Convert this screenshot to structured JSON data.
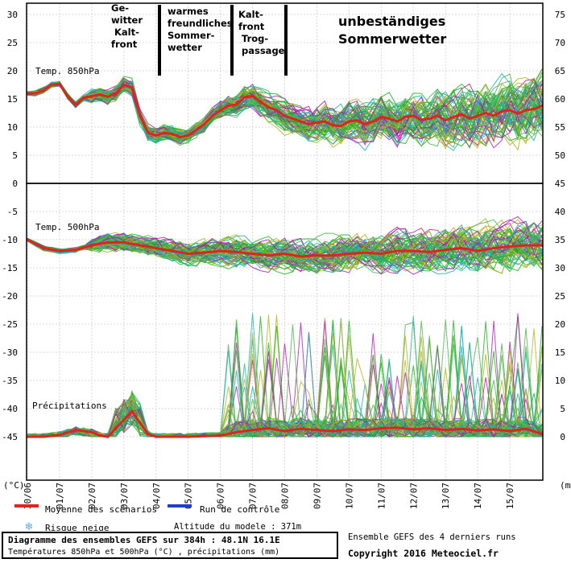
{
  "chart_data": {
    "type": "line",
    "title": "Diagramme des ensembles GEFS sur 384h : 48.1N 16.1E",
    "subtitle": "Températures 850hPa et 500hPa (°C) , précipitations (mm)",
    "dates": [
      "30/06",
      "01/07",
      "02/07",
      "03/07",
      "04/07",
      "05/07",
      "06/07",
      "07/07",
      "08/07",
      "09/07",
      "10/07",
      "11/07",
      "12/07",
      "13/07",
      "14/07",
      "15/07"
    ],
    "left_axis": {
      "unit": "(°C)",
      "ticks": [
        30,
        25,
        20,
        15,
        10,
        5,
        0,
        -5,
        -10,
        -15,
        -20,
        -25,
        -30,
        -35,
        -40,
        -45
      ]
    },
    "right_axis": {
      "unit": "(mm)",
      "ticks": [
        75,
        70,
        65,
        60,
        55,
        50,
        45,
        40,
        35,
        30,
        25,
        20,
        15,
        10,
        5,
        0
      ]
    },
    "panel_labels": {
      "t850": "Temp. 850hPa",
      "t500": "Temp. 500hPa",
      "precip": "Précipitations"
    },
    "series": [
      {
        "name": "Moyenne des scénarios",
        "color": "#e0241b",
        "panel": "t850",
        "x": [
          0,
          6,
          12,
          18,
          24,
          30,
          36,
          42,
          48,
          54,
          60,
          66,
          72,
          78,
          84,
          90,
          96,
          102,
          108,
          114,
          120,
          126,
          132,
          138,
          144,
          150,
          156,
          162,
          168,
          174,
          180,
          186,
          192,
          198,
          204,
          210,
          216,
          222,
          228,
          234,
          240,
          246,
          252,
          258,
          264,
          270,
          276,
          282,
          288,
          294,
          300,
          306,
          312,
          318,
          324,
          330,
          336,
          342,
          348,
          354,
          360,
          366,
          372,
          378,
          384
        ],
        "values": [
          16,
          16,
          16.5,
          17.5,
          17.7,
          15.5,
          14,
          15.2,
          15.5,
          15.8,
          15.4,
          16,
          17.5,
          17,
          12,
          9,
          8.5,
          9,
          8.8,
          8.2,
          8.5,
          9.5,
          10.5,
          12,
          13,
          13.8,
          14,
          15.3,
          15.5,
          14.5,
          13.5,
          13,
          12,
          11.5,
          11,
          10.5,
          10.8,
          11,
          10.3,
          10.2,
          11,
          11.2,
          10.5,
          11,
          11.8,
          11.5,
          11,
          11.8,
          12,
          11.3,
          11.5,
          12,
          11.2,
          11.8,
          12.3,
          11.5,
          12,
          12.5,
          12,
          12.8,
          13,
          12.4,
          13,
          13.2,
          13.8
        ]
      },
      {
        "name": "Moyenne des scénarios",
        "color": "#e0241b",
        "panel": "t500",
        "x": [
          0,
          12,
          24,
          36,
          48,
          60,
          72,
          84,
          96,
          108,
          120,
          132,
          144,
          156,
          168,
          180,
          192,
          204,
          216,
          228,
          240,
          252,
          264,
          276,
          288,
          300,
          312,
          324,
          336,
          348,
          360,
          372,
          384
        ],
        "values": [
          -10,
          -11.5,
          -12,
          -11.8,
          -11,
          -10.5,
          -10.5,
          -11,
          -11.5,
          -12,
          -12.5,
          -12.3,
          -12,
          -12.2,
          -12.5,
          -12.8,
          -12.5,
          -13,
          -12.8,
          -12.8,
          -12.5,
          -12.3,
          -12.5,
          -12,
          -12,
          -12.2,
          -11.8,
          -11.5,
          -12,
          -11.5,
          -11.2,
          -11,
          -11
        ]
      },
      {
        "name": "Moyenne des scénarios",
        "color": "#e0241b",
        "panel": "precip",
        "x": [
          0,
          12,
          24,
          36,
          48,
          54,
          60,
          66,
          72,
          78,
          84,
          90,
          96,
          108,
          120,
          132,
          144,
          156,
          168,
          180,
          192,
          204,
          216,
          228,
          240,
          252,
          264,
          276,
          288,
          300,
          312,
          324,
          336,
          348,
          360,
          372,
          384
        ],
        "values": [
          0,
          0,
          0.3,
          1.2,
          0.8,
          0.2,
          0,
          1.5,
          3,
          4.5,
          2.5,
          0.5,
          0,
          0,
          0,
          0.1,
          0.2,
          0.8,
          1.2,
          1.5,
          1,
          1.4,
          1.2,
          1,
          1.3,
          1.2,
          1.5,
          1.6,
          1.3,
          1.5,
          1.2,
          1.4,
          1.1,
          1.3,
          1,
          1.4,
          0.5
        ]
      },
      {
        "name": "Run de contrôle",
        "color": "#1f3fd1"
      }
    ],
    "legend": [
      {
        "label": "Moyenne des scénarios",
        "color": "#e0241b"
      },
      {
        "label": "Run de contrôle",
        "color": "#1f3fd1"
      },
      {
        "label": "Risque neige",
        "color": "#5aa9e6"
      }
    ],
    "annotations": [
      {
        "text": "Ge-\nwitter\n  Kalt-\nfront",
        "x_hour": 54
      },
      {
        "text": "warmes\nfreundliches\nSommer-\nwetter",
        "x_hour": 90
      },
      {
        "text": "Kalt-\nfront\n    Trog-\n  passage",
        "x_hour": 144
      },
      {
        "text": "unbeständiges\nSommerwetter",
        "x_hour": 260
      }
    ]
  },
  "footer": {
    "title": "Diagramme des ensembles GEFS sur 384h : 48.1N 16.1E",
    "subtitle": "Températures 850hPa et 500hPa (°C) , précipitations (mm)",
    "altitude": "Altitude du modele : 371m",
    "ensemble_note": "Ensemble GEFS des 4 derniers runs",
    "copyright": "Copyright 2016 Meteociel.fr"
  },
  "colors": {
    "mean": "#e0241b",
    "control": "#1f3fd1",
    "snow": "#5aa9e6",
    "members": [
      "#19b319",
      "#b319b3",
      "#b3b319",
      "#19b3b3",
      "#4db34d"
    ]
  }
}
